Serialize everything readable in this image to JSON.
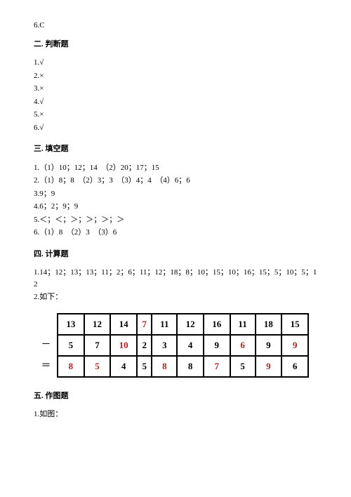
{
  "top_line": "6.C",
  "section2": {
    "heading": "二. 判断题",
    "items": [
      "1.√",
      "2.×",
      "3.×",
      "4.√",
      "5.×",
      "6.√"
    ]
  },
  "section3": {
    "heading": "三. 填空题",
    "items": [
      "1.（1）10；12；14　（2）20；17；15",
      "2.（1）8；8　（2）3；3　（3）4；4　（4）6；6",
      "3.9；9",
      "4.6；2；9；9",
      "5.＜；＜；＞；＞；＞；＞",
      "6.（1）8　（2）3　（3）6"
    ]
  },
  "section4": {
    "heading": "四. 计算题",
    "line1": "1.14；12；13；13；11；2；6；11；12；18；8；10；15；10；16；15；5；10；5；12",
    "line2": "2.如下：",
    "table": {
      "row_labels": [
        "",
        "－",
        "＝"
      ],
      "cells": [
        [
          {
            "v": "13",
            "r": false
          },
          {
            "v": "12",
            "r": false
          },
          {
            "v": "14",
            "r": false
          },
          {
            "v": "7",
            "r": true
          },
          {
            "v": "11",
            "r": false
          },
          {
            "v": "12",
            "r": false
          },
          {
            "v": "16",
            "r": false
          },
          {
            "v": "11",
            "r": false
          },
          {
            "v": "18",
            "r": false
          },
          {
            "v": "15",
            "r": false
          }
        ],
        [
          {
            "v": "5",
            "r": false
          },
          {
            "v": "7",
            "r": false
          },
          {
            "v": "10",
            "r": true
          },
          {
            "v": "2",
            "r": false
          },
          {
            "v": "3",
            "r": false
          },
          {
            "v": "4",
            "r": false
          },
          {
            "v": "9",
            "r": false
          },
          {
            "v": "6",
            "r": true
          },
          {
            "v": "9",
            "r": false
          },
          {
            "v": "9",
            "r": true
          }
        ],
        [
          {
            "v": "8",
            "r": true
          },
          {
            "v": "5",
            "r": true
          },
          {
            "v": "4",
            "r": false
          },
          {
            "v": "5",
            "r": false
          },
          {
            "v": "8",
            "r": true
          },
          {
            "v": "8",
            "r": false
          },
          {
            "v": "7",
            "r": true
          },
          {
            "v": "5",
            "r": false
          },
          {
            "v": "9",
            "r": true
          },
          {
            "v": "6",
            "r": false
          }
        ]
      ]
    }
  },
  "section5": {
    "heading": "五. 作图题",
    "line1": "1.如图："
  }
}
